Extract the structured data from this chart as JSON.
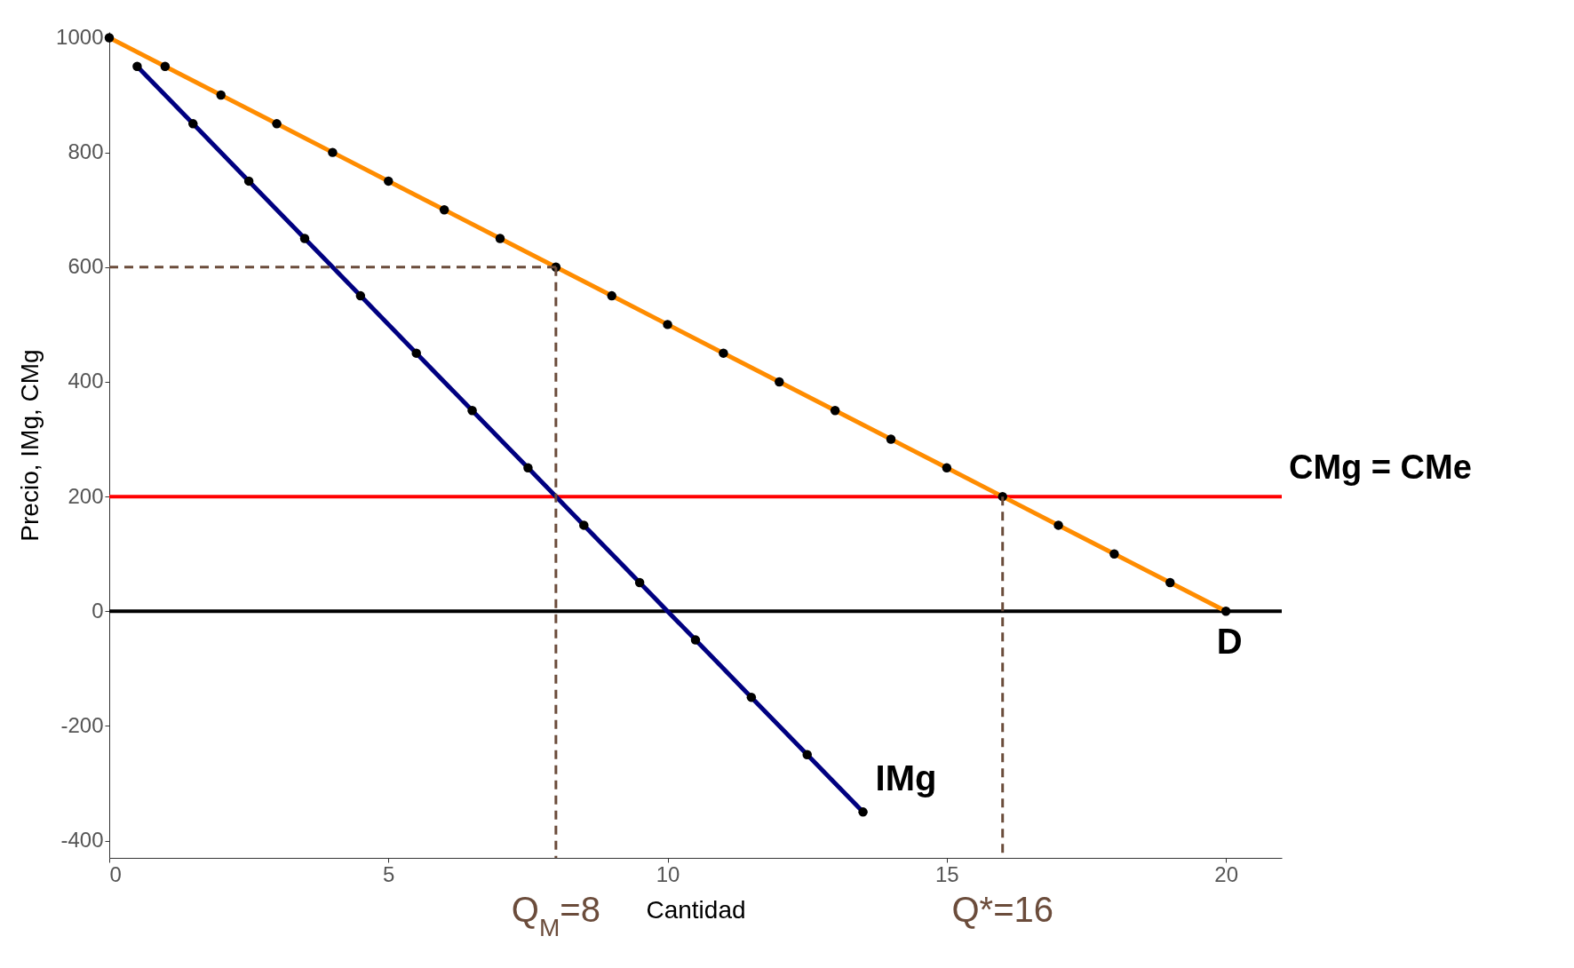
{
  "chart_data": {
    "type": "line",
    "xlabel": "Cantidad",
    "ylabel": "Precio, IMg, CMg",
    "xlim": [
      0,
      21
    ],
    "ylim": [
      -430,
      1010
    ],
    "xticks": [
      0,
      5,
      10,
      15,
      20
    ],
    "yticks": [
      -400,
      -200,
      0,
      200,
      400,
      600,
      800,
      1000
    ],
    "grid": false,
    "marker": "circle",
    "line_style": "solid",
    "series": [
      {
        "name": "D",
        "color": "#ff8c00",
        "x": [
          0,
          1,
          2,
          3,
          4,
          5,
          6,
          7,
          8,
          9,
          10,
          11,
          12,
          13,
          14,
          15,
          16,
          17,
          18,
          19,
          20
        ],
        "values": [
          1000,
          950,
          900,
          850,
          800,
          750,
          700,
          650,
          600,
          550,
          500,
          450,
          400,
          350,
          300,
          250,
          200,
          150,
          100,
          50,
          0
        ]
      },
      {
        "name": "IMg",
        "color": "#000080",
        "x": [
          0.5,
          1.5,
          2.5,
          3.5,
          4.5,
          5.5,
          6.5,
          7.5,
          8.5,
          9.5,
          10.5,
          11.5,
          12.5,
          13.5
        ],
        "values": [
          950,
          850,
          750,
          650,
          550,
          450,
          350,
          250,
          150,
          50,
          -50,
          -150,
          -250,
          -350
        ]
      },
      {
        "color": "#6b4c3b",
        "marker": "none",
        "line_style": "dashed",
        "x": [
          0,
          8
        ],
        "values": [
          600,
          600
        ]
      },
      {
        "name": "Q$_{M}$=8",
        "color": "#6b4c3b",
        "marker": "none",
        "line_style": "dashed",
        "x": [
          8,
          8
        ],
        "values": [
          600,
          -430
        ]
      },
      {
        "name": "Q*=16",
        "color": "#6b4c3b",
        "marker": "none",
        "line_style": "dashed",
        "x": [
          16,
          16
        ],
        "values": [
          200,
          -430
        ]
      }
    ],
    "ref_lines": [
      {
        "axis": "y",
        "value": 200,
        "label": "CMg = CMe",
        "color": "#ff0000"
      },
      {
        "axis": "y",
        "value": 0,
        "color": "#000000"
      }
    ]
  }
}
